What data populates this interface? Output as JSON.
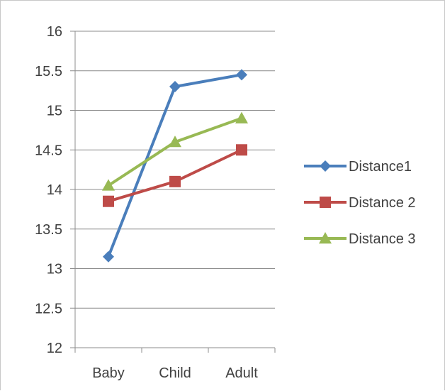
{
  "chart_data": {
    "type": "line",
    "categories": [
      "Baby",
      "Child",
      "Adult"
    ],
    "series": [
      {
        "name": "Distance1",
        "values": [
          13.15,
          15.3,
          15.45
        ],
        "color": "#4a7ebb",
        "marker": "diamond"
      },
      {
        "name": "Distance 2",
        "values": [
          13.85,
          14.1,
          14.5
        ],
        "color": "#be4b48",
        "marker": "square"
      },
      {
        "name": "Distance 3",
        "values": [
          14.05,
          14.6,
          14.9
        ],
        "color": "#98b954",
        "marker": "triangle"
      }
    ],
    "ylim": [
      12,
      16
    ],
    "yticks": [
      "12",
      "12.5",
      "13",
      "13.5",
      "14",
      "14.5",
      "15",
      "15.5",
      "16"
    ],
    "grid": "horizontal",
    "legend_position": "right",
    "gridline_color": "#8c8c8c",
    "axis_color": "#8c8c8c"
  }
}
